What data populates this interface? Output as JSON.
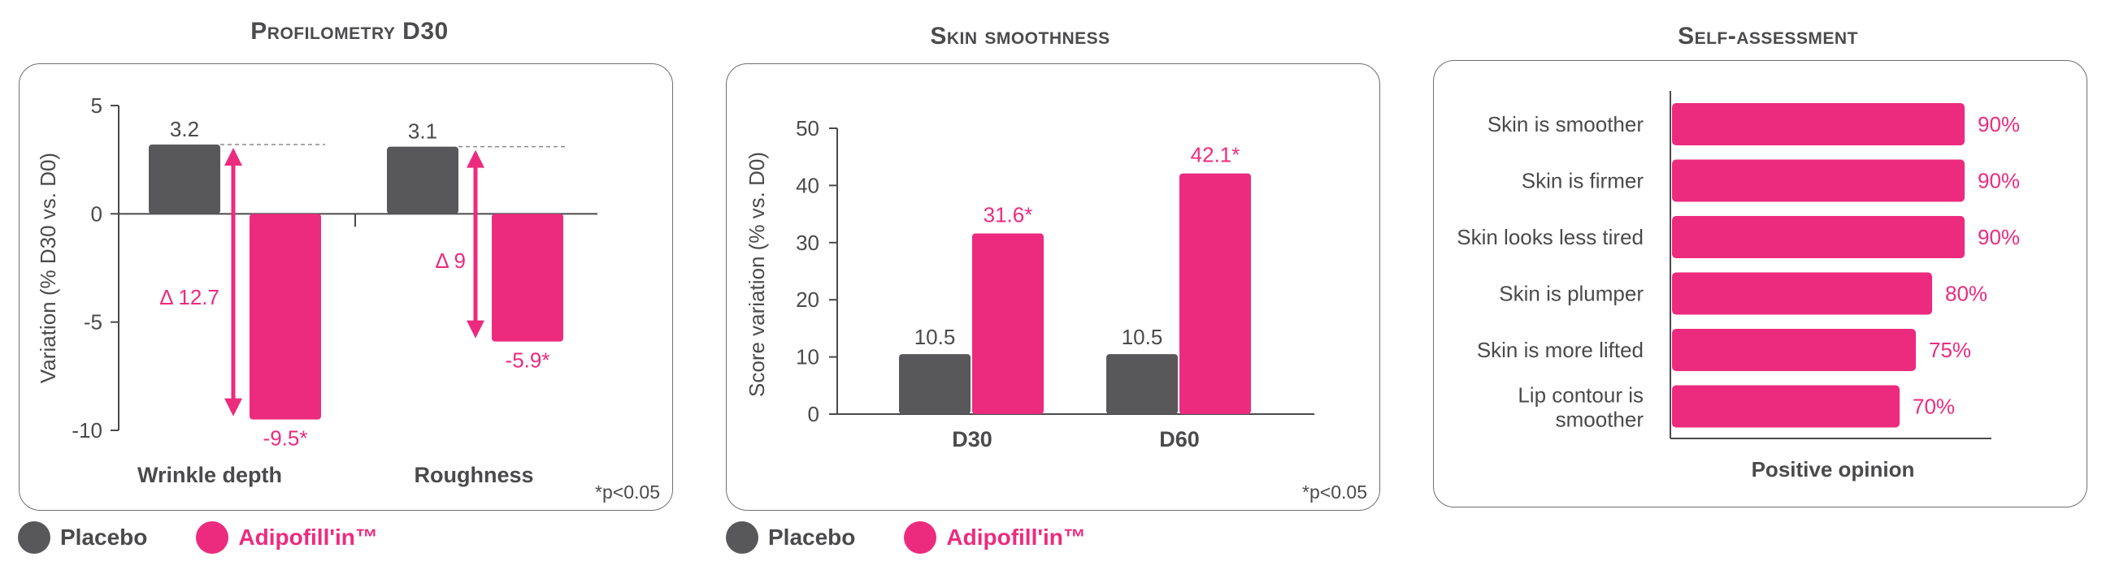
{
  "colors": {
    "placebo": "#58585a",
    "active": "#ed2b7e",
    "axis": "#4a4a4c"
  },
  "legend": {
    "placebo_label": "Placebo",
    "active_label": "Adipofill'in™"
  },
  "chart_data": [
    {
      "type": "bar",
      "title": "Profilometry D30",
      "ylabel": "Variation (% D30 vs. D0)",
      "ylim": [
        -10,
        5
      ],
      "yticks": [
        "5",
        "0",
        "-5",
        "-10"
      ],
      "categories": [
        "Wrinkle depth",
        "Roughness"
      ],
      "series": [
        {
          "name": "Placebo",
          "values": [
            3.2,
            3.1
          ]
        },
        {
          "name": "Adipofill'in™",
          "values": [
            -9.5,
            -5.9
          ]
        }
      ],
      "value_labels": {
        "placebo": [
          "3.2",
          "3.1"
        ],
        "active": [
          "-9.5*",
          "-5.9*"
        ]
      },
      "deltas": [
        "Δ 12.7",
        "Δ 9"
      ],
      "footnote": "*p<0.05"
    },
    {
      "type": "bar",
      "title": "Skin smoothness",
      "ylabel": "Score variation (% vs. D0)",
      "ylim": [
        0,
        50
      ],
      "yticks": [
        "50",
        "40",
        "30",
        "20",
        "10",
        "0"
      ],
      "categories": [
        "D30",
        "D60"
      ],
      "series": [
        {
          "name": "Placebo",
          "values": [
            10.5,
            10.5
          ]
        },
        {
          "name": "Adipofill'in™",
          "values": [
            31.6,
            42.1
          ]
        }
      ],
      "value_labels": {
        "placebo": [
          "10.5",
          "10.5"
        ],
        "active": [
          "31.6*",
          "42.1*"
        ]
      },
      "footnote": "*p<0.05"
    },
    {
      "type": "bar",
      "orientation": "horizontal",
      "title": "Self-assessment",
      "xlabel": "Positive opinion",
      "categories": [
        "Skin is smoother",
        "Skin is firmer",
        "Skin looks less tired",
        "Skin is plumper",
        "Skin is more lifted",
        "Lip contour is smoother"
      ],
      "values": [
        90,
        90,
        90,
        80,
        75,
        70
      ],
      "value_labels": [
        "90%",
        "90%",
        "90%",
        "80%",
        "75%",
        "70%"
      ]
    }
  ]
}
